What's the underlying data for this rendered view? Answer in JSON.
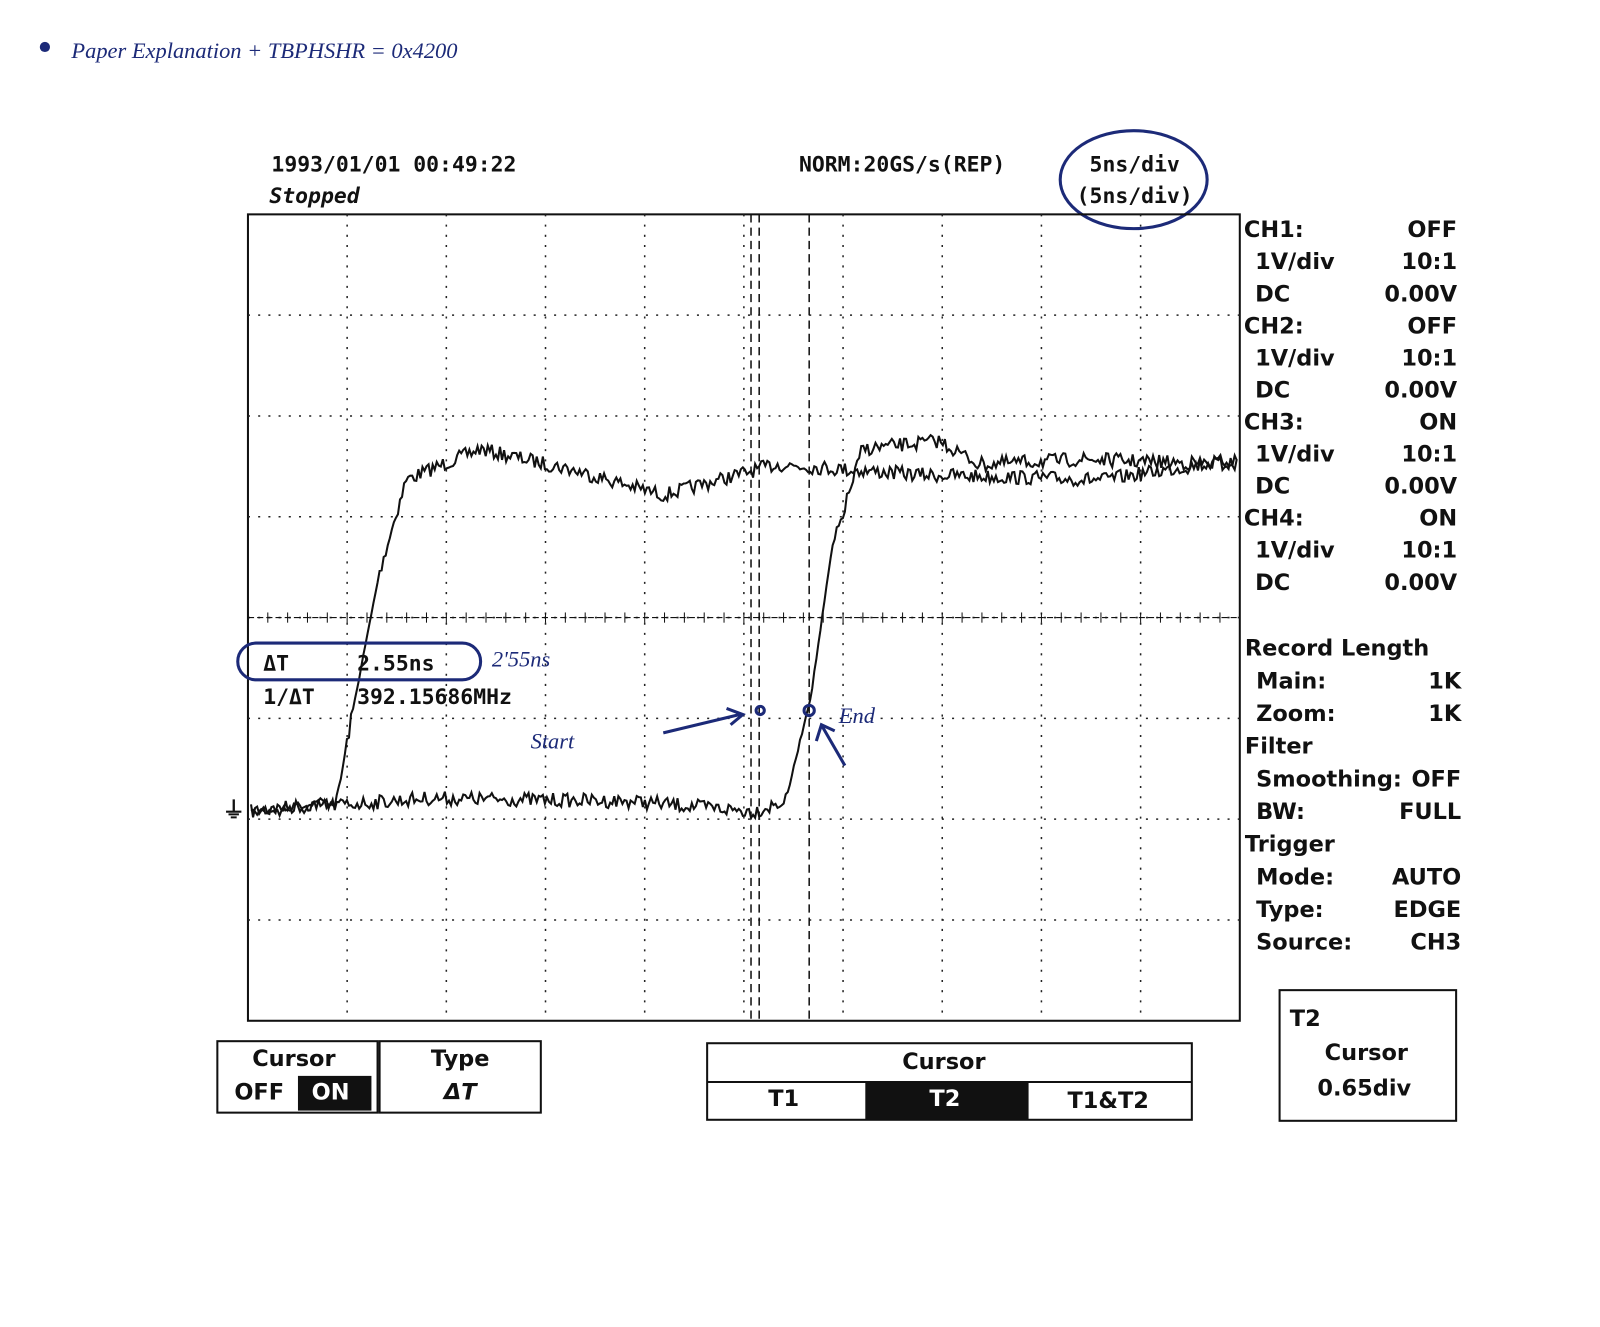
{
  "handwritten": {
    "title": "Paper Explanation + TBPHSHR = 0x4200",
    "delta_note": "2'55ns",
    "start": "Start",
    "end": "End"
  },
  "header": {
    "timestamp": "1993/01/01 00:49:22",
    "status": "Stopped",
    "sample_rate": "NORM:20GS/s(REP)",
    "timebase": "5ns/div",
    "zoom_timebase": "(5ns/div)"
  },
  "measurement": {
    "delta_t_label": "ΔT",
    "delta_t_value": "2.55ns",
    "inverse_label": "1/ΔT",
    "inverse_value": "392.15686MHz"
  },
  "channels": [
    {
      "name": "CH1:",
      "state": "OFF",
      "scale": "1V/div",
      "probe": "10:1",
      "coupling": "DC",
      "offset": "0.00V"
    },
    {
      "name": "CH2:",
      "state": "OFF",
      "scale": "1V/div",
      "probe": "10:1",
      "coupling": "DC",
      "offset": "0.00V"
    },
    {
      "name": "CH3:",
      "state": "ON",
      "scale": "1V/div",
      "probe": "10:1",
      "coupling": "DC",
      "offset": "0.00V"
    },
    {
      "name": "CH4:",
      "state": "ON",
      "scale": "1V/div",
      "probe": "10:1",
      "coupling": "DC",
      "offset": "0.00V"
    }
  ],
  "settings": [
    {
      "title": "Record Length",
      "rows": [
        [
          "Main:",
          "1K"
        ],
        [
          "Zoom:",
          "1K"
        ]
      ]
    },
    {
      "title": "Filter",
      "rows": [
        [
          "Smoothing:",
          "OFF"
        ],
        [
          "BW:",
          "FULL"
        ]
      ]
    },
    {
      "title": "Trigger",
      "rows": [
        [
          "Mode:",
          "AUTO"
        ],
        [
          "Type:",
          "EDGE"
        ],
        [
          "Source:",
          "CH3"
        ]
      ]
    }
  ],
  "menu": {
    "cursor_toggle": {
      "label": "Cursor",
      "options": [
        "OFF",
        "ON"
      ]
    },
    "type": {
      "label": "Type",
      "value": "ΔT"
    },
    "cursor_select": {
      "label": "Cursor",
      "options": [
        "T1",
        "T2",
        "T1&T2"
      ]
    },
    "t2_cursor": {
      "title": "T2",
      "label": "Cursor",
      "value": "0.65div"
    }
  }
}
